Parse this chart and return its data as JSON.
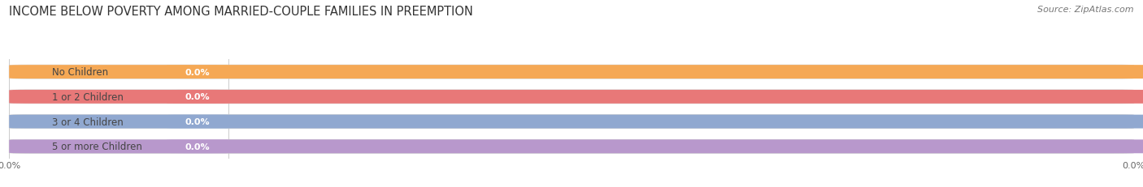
{
  "title": "INCOME BELOW POVERTY AMONG MARRIED-COUPLE FAMILIES IN PREEMPTION",
  "source": "Source: ZipAtlas.com",
  "categories": [
    "No Children",
    "1 or 2 Children",
    "3 or 4 Children",
    "5 or more Children"
  ],
  "values": [
    0.0,
    0.0,
    0.0,
    0.0
  ],
  "circle_colors": [
    "#f5a855",
    "#e87878",
    "#90a8d0",
    "#b898cc"
  ],
  "value_colors": [
    "#f5c890",
    "#f0a0a0",
    "#b0c8e8",
    "#cdb0e0"
  ],
  "label_bg_color": "#ffffff",
  "bar_bg_color": "#e8e8e8",
  "background_color": "#ffffff",
  "title_fontsize": 10.5,
  "source_fontsize": 8,
  "label_fontsize": 8.5,
  "value_fontsize": 8,
  "tick_fontsize": 8,
  "figsize": [
    14.06,
    2.32
  ],
  "dpi": 100
}
